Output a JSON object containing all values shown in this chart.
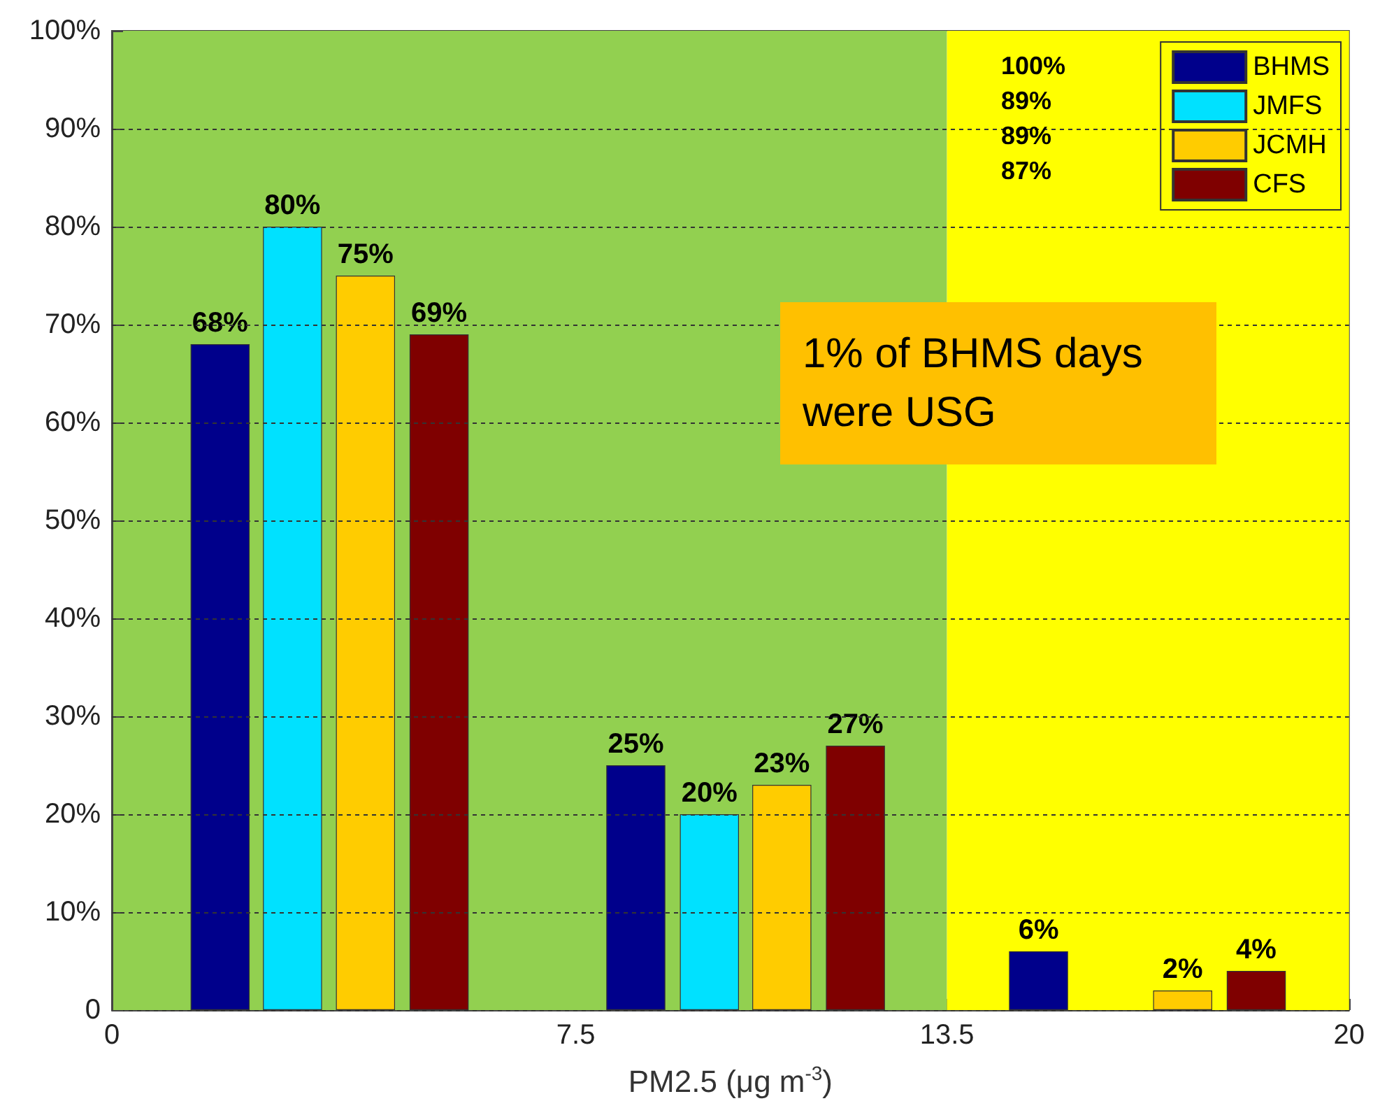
{
  "chart_data": {
    "type": "bar",
    "xlabel": "PM2.5 (μg m$^{-3}$)",
    "xlim": [
      0,
      20
    ],
    "xticks": [
      0,
      7.5,
      13.5,
      20
    ],
    "ylim": [
      0,
      100
    ],
    "yticks": [
      {
        "value": 0,
        "label": "0"
      },
      {
        "value": 10,
        "label": "10%"
      },
      {
        "value": 20,
        "label": "20%"
      },
      {
        "value": 30,
        "label": "30%"
      },
      {
        "value": 40,
        "label": "40%"
      },
      {
        "value": 50,
        "label": "50%"
      },
      {
        "value": 60,
        "label": "60%"
      },
      {
        "value": 70,
        "label": "70%"
      },
      {
        "value": 80,
        "label": "80%"
      },
      {
        "value": 90,
        "label": "90%"
      },
      {
        "value": 100,
        "label": "100%"
      }
    ],
    "grid": "y",
    "legend": "top right",
    "series": [
      {
        "name": "BHMS",
        "color": "#00008b",
        "x": [
          1.75,
          8.47,
          14.98
        ],
        "values": [
          68,
          25,
          6
        ],
        "value_labels": [
          "68%",
          "25%",
          "6%"
        ]
      },
      {
        "name": "JMFS",
        "color": "#00e1ff",
        "x": [
          2.92,
          9.66
        ],
        "values": [
          80,
          20
        ],
        "value_labels": [
          "80%",
          "20%"
        ]
      },
      {
        "name": "JCMH",
        "color": "#ffcc00",
        "x": [
          4.1,
          10.83,
          17.31
        ],
        "values": [
          75,
          23,
          2
        ],
        "value_labels": [
          "75%",
          "23%",
          "2%"
        ]
      },
      {
        "name": "CFS",
        "color": "#7f0000",
        "x": [
          5.29,
          12.02,
          18.5
        ],
        "values": [
          69,
          27,
          4
        ],
        "value_labels": [
          "69%",
          "27%",
          "4%"
        ]
      }
    ],
    "bands": [
      {
        "axis": "x",
        "from": 0,
        "to": 13.5,
        "color": "#92d050"
      },
      {
        "axis": "x",
        "from": 13.5,
        "to": 20,
        "color": "#ffff00"
      }
    ],
    "annotations": [
      "100%",
      "89%",
      "89%",
      "87%",
      "1% of BHMS days were USG"
    ]
  }
}
